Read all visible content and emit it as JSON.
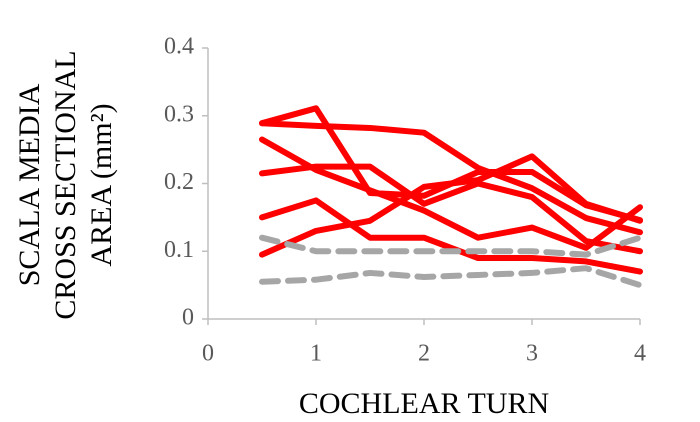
{
  "chart_data": {
    "type": "line",
    "y_label": [
      "SCALA MEDIA",
      "CROSS SECTIONAL",
      "AREA (mm²)"
    ],
    "x_label": "COCHLEAR TURN",
    "x": [
      0.5,
      1,
      1.5,
      2,
      2.5,
      3,
      3.5,
      4
    ],
    "series": [
      {
        "color": "#ff0000",
        "dashed": false,
        "values": [
          0.289,
          0.285,
          0.282,
          0.275,
          0.223,
          0.193,
          0.149,
          0.128
        ]
      },
      {
        "color": "#ff0000",
        "dashed": false,
        "values": [
          0.289,
          0.311,
          0.186,
          0.182,
          0.217,
          0.217,
          0.168,
          0.146
        ]
      },
      {
        "color": "#ff0000",
        "dashed": false,
        "values": [
          0.265,
          0.22,
          0.19,
          0.16,
          0.12,
          0.135,
          0.105,
          0.165
        ]
      },
      {
        "color": "#ff0000",
        "dashed": false,
        "values": [
          0.215,
          0.225,
          0.225,
          0.17,
          0.2,
          0.18,
          0.115,
          0.1
        ]
      },
      {
        "color": "#ff0000",
        "dashed": false,
        "values": [
          0.15,
          0.175,
          0.12,
          0.12,
          0.09,
          0.09,
          0.085,
          0.07
        ]
      },
      {
        "color": "#ff0000",
        "dashed": false,
        "values": [
          0.095,
          0.13,
          0.145,
          0.195,
          0.205,
          0.24,
          0.17,
          0.145
        ]
      },
      {
        "color": "#a6a6a6",
        "dashed": true,
        "values": [
          0.12,
          0.1,
          0.1,
          0.1,
          0.1,
          0.1,
          0.095,
          0.12
        ]
      },
      {
        "color": "#a6a6a6",
        "dashed": true,
        "values": [
          0.055,
          0.058,
          0.068,
          0.062,
          0.065,
          0.068,
          0.075,
          0.05
        ]
      }
    ],
    "xlim": [
      0,
      4
    ],
    "xticks": [
      0,
      1,
      2,
      3,
      4
    ],
    "ylim": [
      0,
      0.4
    ],
    "yticks": [
      0,
      0.1,
      0.2,
      0.3,
      0.4
    ],
    "grid": false
  }
}
